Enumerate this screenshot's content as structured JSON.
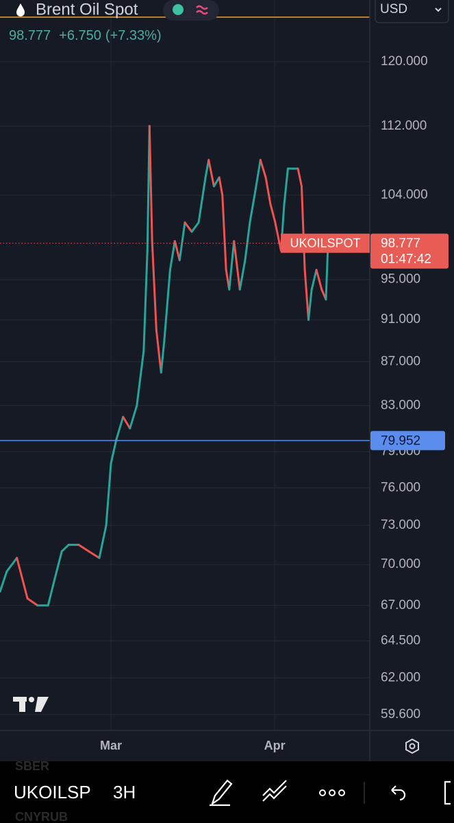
{
  "header": {
    "symbol_name": "Brent Oil Spot",
    "price": "98.777",
    "change": "+6.750",
    "change_pct": "(+7.33%)",
    "currency": "USD"
  },
  "chart_data": {
    "type": "line",
    "x": [
      -21.0,
      -19.7,
      -17.8,
      -15.8,
      -13.9,
      -11.9,
      -10.6,
      -9.3,
      -8.0,
      -6.1,
      -4.2,
      -2.2,
      -0.9,
      0,
      1.0,
      2.3,
      3.6,
      4.9,
      6.2,
      6.9,
      7.3,
      7.8,
      8.6,
      9.5,
      10.1,
      11.2,
      12.1,
      13.0,
      14.0,
      15.3,
      16.6,
      17.9,
      18.5,
      19.5,
      20.5,
      21.1,
      21.8,
      22.4,
      23.3,
      24.4,
      25.4,
      26.3,
      27.2,
      28.3,
      29.3,
      30.2,
      31.1,
      32.2,
      32.8,
      33.5,
      34.5,
      35.4,
      36.1,
      36.7,
      37.4,
      38.0,
      38.9,
      39.9,
      40.7,
      41.1
    ],
    "values": [
      68,
      69.5,
      70.5,
      67.5,
      67,
      67,
      69,
      71,
      71.5,
      71.5,
      71,
      70.5,
      73,
      78,
      80,
      82,
      81,
      83,
      88,
      98,
      112,
      99,
      90,
      86,
      89,
      96,
      99,
      97,
      101,
      100,
      101,
      106,
      108,
      105,
      106,
      104,
      96,
      94,
      99,
      94,
      97,
      101,
      104,
      108,
      106,
      103,
      101,
      98,
      103,
      107,
      107,
      107,
      105,
      96,
      91,
      94,
      96,
      94,
      93,
      98.777
    ],
    "up_color": "#26a69a",
    "down_color": "#ef5350",
    "ylim": [
      58.6,
      125.4
    ],
    "log_scale": true,
    "yticks": [
      {
        "value": 120,
        "label": "120.000"
      },
      {
        "value": 112,
        "label": "112.000"
      },
      {
        "value": 104,
        "label": "104.000"
      },
      {
        "value": 95,
        "label": "95.000"
      },
      {
        "value": 91,
        "label": "91.000"
      },
      {
        "value": 87,
        "label": "87.000"
      },
      {
        "value": 83,
        "label": "83.000"
      },
      {
        "value": 79,
        "label": "79.000"
      },
      {
        "value": 76,
        "label": "76.000"
      },
      {
        "value": 73,
        "label": "73.000"
      },
      {
        "value": 70,
        "label": "70.000"
      },
      {
        "value": 67,
        "label": "67.000"
      },
      {
        "value": 64.5,
        "label": "64.500"
      },
      {
        "value": 62,
        "label": "62.000"
      },
      {
        "value": 59.6,
        "label": "59.600"
      }
    ],
    "xlim": [
      -21,
      49
    ],
    "xticks": [
      {
        "value": 0,
        "label": "Mar"
      },
      {
        "value": 31,
        "label": "Apr"
      }
    ],
    "grid": true,
    "price_label": {
      "symbol": "UKOILSPOT",
      "value": 98.777,
      "label": "98.777",
      "countdown": "01:47:42"
    },
    "horizontal_line": {
      "value": 79.952,
      "label": "79.952"
    }
  },
  "toolbar": {
    "symbol": "UKOILSP",
    "interval": "3H",
    "watchlist": [
      "SBER",
      "CNYRUB"
    ]
  }
}
